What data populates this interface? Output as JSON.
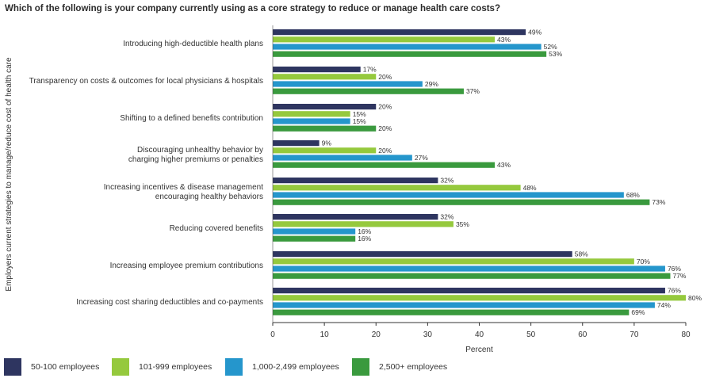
{
  "chart_data": {
    "type": "bar",
    "orientation": "horizontal",
    "title": "Which of the following is your company currently using as a core strategy to reduce or manage health care costs?",
    "xlabel": "Percent",
    "ylabel": "Employers current strategies to manage/reduce cost of health care",
    "xlim": [
      0,
      80
    ],
    "xticks": [
      0,
      10,
      20,
      30,
      40,
      50,
      60,
      70,
      80
    ],
    "grid": false,
    "legend_position": "bottom",
    "value_suffix": "%",
    "categories": [
      [
        "Introducing high-deductible health plans"
      ],
      [
        "Transparency on costs & outcomes for local physicians & hospitals"
      ],
      [
        "Shifting to a defined benefits contribution"
      ],
      [
        "Discouraging unhealthy behavior by",
        "charging higher premiums or penalties"
      ],
      [
        "Increasing incentives & disease management",
        "encouraging healthy behaviors"
      ],
      [
        "Reducing covered benefits"
      ],
      [
        "Increasing employee premium contributions"
      ],
      [
        "Increasing cost sharing deductibles and co-payments"
      ]
    ],
    "series": [
      {
        "name": "50-100 employees",
        "color": "#2e3560",
        "values": [
          49,
          17,
          20,
          9,
          32,
          32,
          58,
          76
        ]
      },
      {
        "name": "101-999 employees",
        "color": "#95c93d",
        "values": [
          43,
          20,
          15,
          20,
          48,
          35,
          70,
          80
        ]
      },
      {
        "name": "1,000-2,499 employees",
        "color": "#2596cc",
        "values": [
          52,
          29,
          15,
          27,
          68,
          16,
          76,
          74
        ]
      },
      {
        "name": "2,500+ employees",
        "color": "#3a9a3e",
        "values": [
          53,
          37,
          20,
          43,
          73,
          16,
          77,
          69
        ]
      }
    ]
  }
}
